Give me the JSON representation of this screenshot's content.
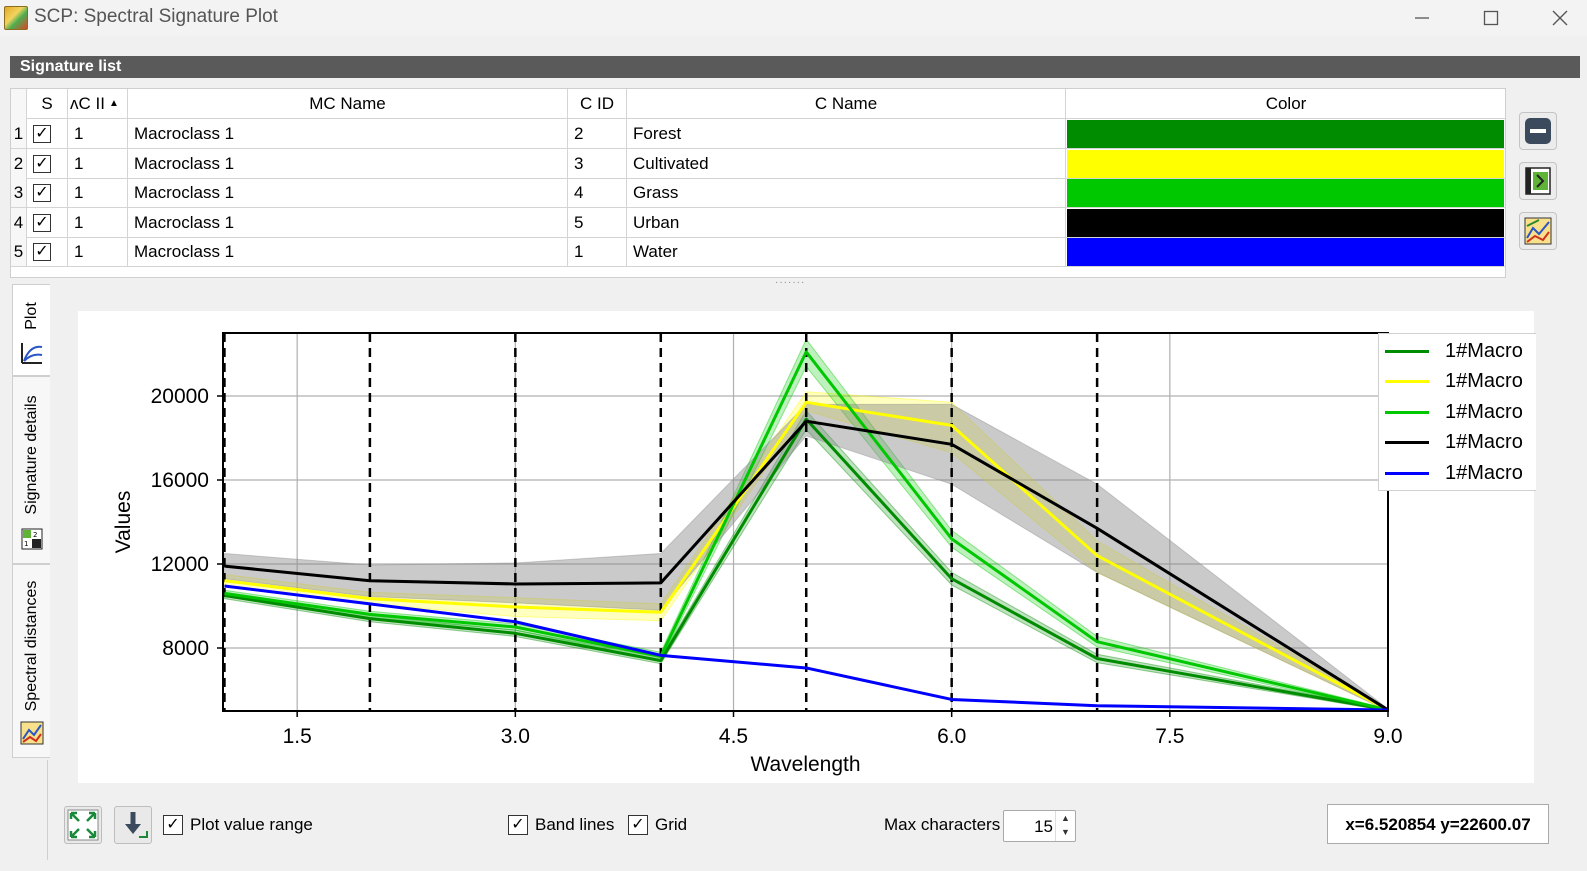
{
  "window": {
    "title": "SCP: Spectral Signature Plot"
  },
  "signature_list": {
    "header": "Signature list",
    "columns": [
      "S",
      "MC ID",
      "MC Name",
      "C ID",
      "C Name",
      "Color"
    ],
    "column_visible_labels": [
      "S",
      "ʌC II",
      "MC Name",
      "C ID",
      "C Name",
      "Color"
    ],
    "rows": [
      {
        "num": "1",
        "checked": true,
        "mc_id": "1",
        "mc_name": "Macroclass 1",
        "c_id": "2",
        "c_name": "Forest",
        "color": "#008c00"
      },
      {
        "num": "2",
        "checked": true,
        "mc_id": "1",
        "mc_name": "Macroclass 1",
        "c_id": "3",
        "c_name": "Cultivated",
        "color": "#ffff00"
      },
      {
        "num": "3",
        "checked": true,
        "mc_id": "1",
        "mc_name": "Macroclass 1",
        "c_id": "4",
        "c_name": "Grass",
        "color": "#00c800"
      },
      {
        "num": "4",
        "checked": true,
        "mc_id": "1",
        "mc_name": "Macroclass 1",
        "c_id": "5",
        "c_name": "Urban",
        "color": "#000000"
      },
      {
        "num": "5",
        "checked": true,
        "mc_id": "1",
        "mc_name": "Macroclass 1",
        "c_id": "1",
        "c_name": "Water",
        "color": "#0000ff"
      }
    ]
  },
  "side_buttons": [
    "remove-signature-icon",
    "export-icon",
    "add-to-plot-icon"
  ],
  "tabs": {
    "plot": "Plot",
    "signature_details": "Signature details",
    "spectral_distances": "Spectral distances"
  },
  "chart_data": {
    "type": "line",
    "xlabel": "Wavelength",
    "ylabel": "Values",
    "xlim": [
      0.99,
      9.0
    ],
    "ylim": [
      5000,
      23000
    ],
    "xticks": [
      "1.5",
      "3.0",
      "4.5",
      "6.0",
      "7.5",
      "9.0"
    ],
    "yticks": [
      "8000",
      "12000",
      "16000",
      "20000"
    ],
    "band_lines": [
      1.0,
      2.0,
      3.0,
      4.0,
      5.0,
      6.0,
      7.0
    ],
    "grid": true,
    "legend_position": "top-right",
    "x": [
      1,
      2,
      3,
      4,
      5,
      6,
      7,
      9
    ],
    "series": [
      {
        "name": "1#Macro",
        "color": "#008c00",
        "values": [
          10500,
          9400,
          8700,
          7400,
          18900,
          11300,
          7500,
          5050
        ],
        "range_lo": [
          10350,
          9250,
          8550,
          7250,
          18400,
          11000,
          7300,
          5000
        ],
        "range_hi": [
          10650,
          9550,
          8850,
          7550,
          19300,
          11600,
          7700,
          5100
        ],
        "band_color": "#008c00"
      },
      {
        "name": "1#Macro",
        "color": "#ffff00",
        "values": [
          11200,
          10350,
          9950,
          9700,
          19700,
          18600,
          12400,
          5050
        ],
        "range_lo": [
          10900,
          10100,
          9500,
          9300,
          19300,
          17300,
          11600,
          5000
        ],
        "range_hi": [
          11500,
          10650,
          10400,
          10100,
          20200,
          19700,
          13100,
          5100
        ],
        "band_color": "#ffff00"
      },
      {
        "name": "1#Macro",
        "color": "#00c800",
        "values": [
          10600,
          9600,
          9000,
          7600,
          22100,
          13200,
          8300,
          5050
        ],
        "range_lo": [
          10450,
          9450,
          8850,
          7400,
          21400,
          12800,
          8050,
          5000
        ],
        "range_hi": [
          10750,
          9750,
          9150,
          7800,
          22700,
          13600,
          8550,
          5100
        ],
        "band_color": "#00c800"
      },
      {
        "name": "1#Macro",
        "color": "#000000",
        "values": [
          11900,
          11200,
          11050,
          11100,
          18800,
          17700,
          13700,
          5050
        ],
        "range_lo": [
          11300,
          10450,
          10150,
          9800,
          18100,
          15800,
          11600,
          5000
        ],
        "range_hi": [
          12500,
          11950,
          12050,
          12500,
          19600,
          19600,
          15800,
          5100
        ],
        "band_color": "#8a8a8a"
      },
      {
        "name": "1#Macro",
        "color": "#0000ff",
        "values": [
          10950,
          10100,
          9250,
          7650,
          7050,
          5550,
          5250,
          5050
        ],
        "range_lo": [
          10950,
          10100,
          9250,
          7650,
          7050,
          5550,
          5250,
          5050
        ],
        "range_hi": [
          10950,
          10100,
          9250,
          7650,
          7050,
          5550,
          5250,
          5050
        ],
        "band_color": "#0000ff"
      }
    ]
  },
  "toolbar": {
    "fit_icon": "fit-to-axes-icon",
    "save_icon": "save-plot-icon",
    "plot_value_range_label": "Plot value range",
    "plot_value_range_checked": true,
    "band_lines_label": "Band lines",
    "band_lines_checked": true,
    "grid_label": "Grid",
    "grid_checked": true,
    "max_characters_label": "Max characters",
    "max_characters_value": "15",
    "coordinates": "x=6.520854 y=22600.07"
  }
}
